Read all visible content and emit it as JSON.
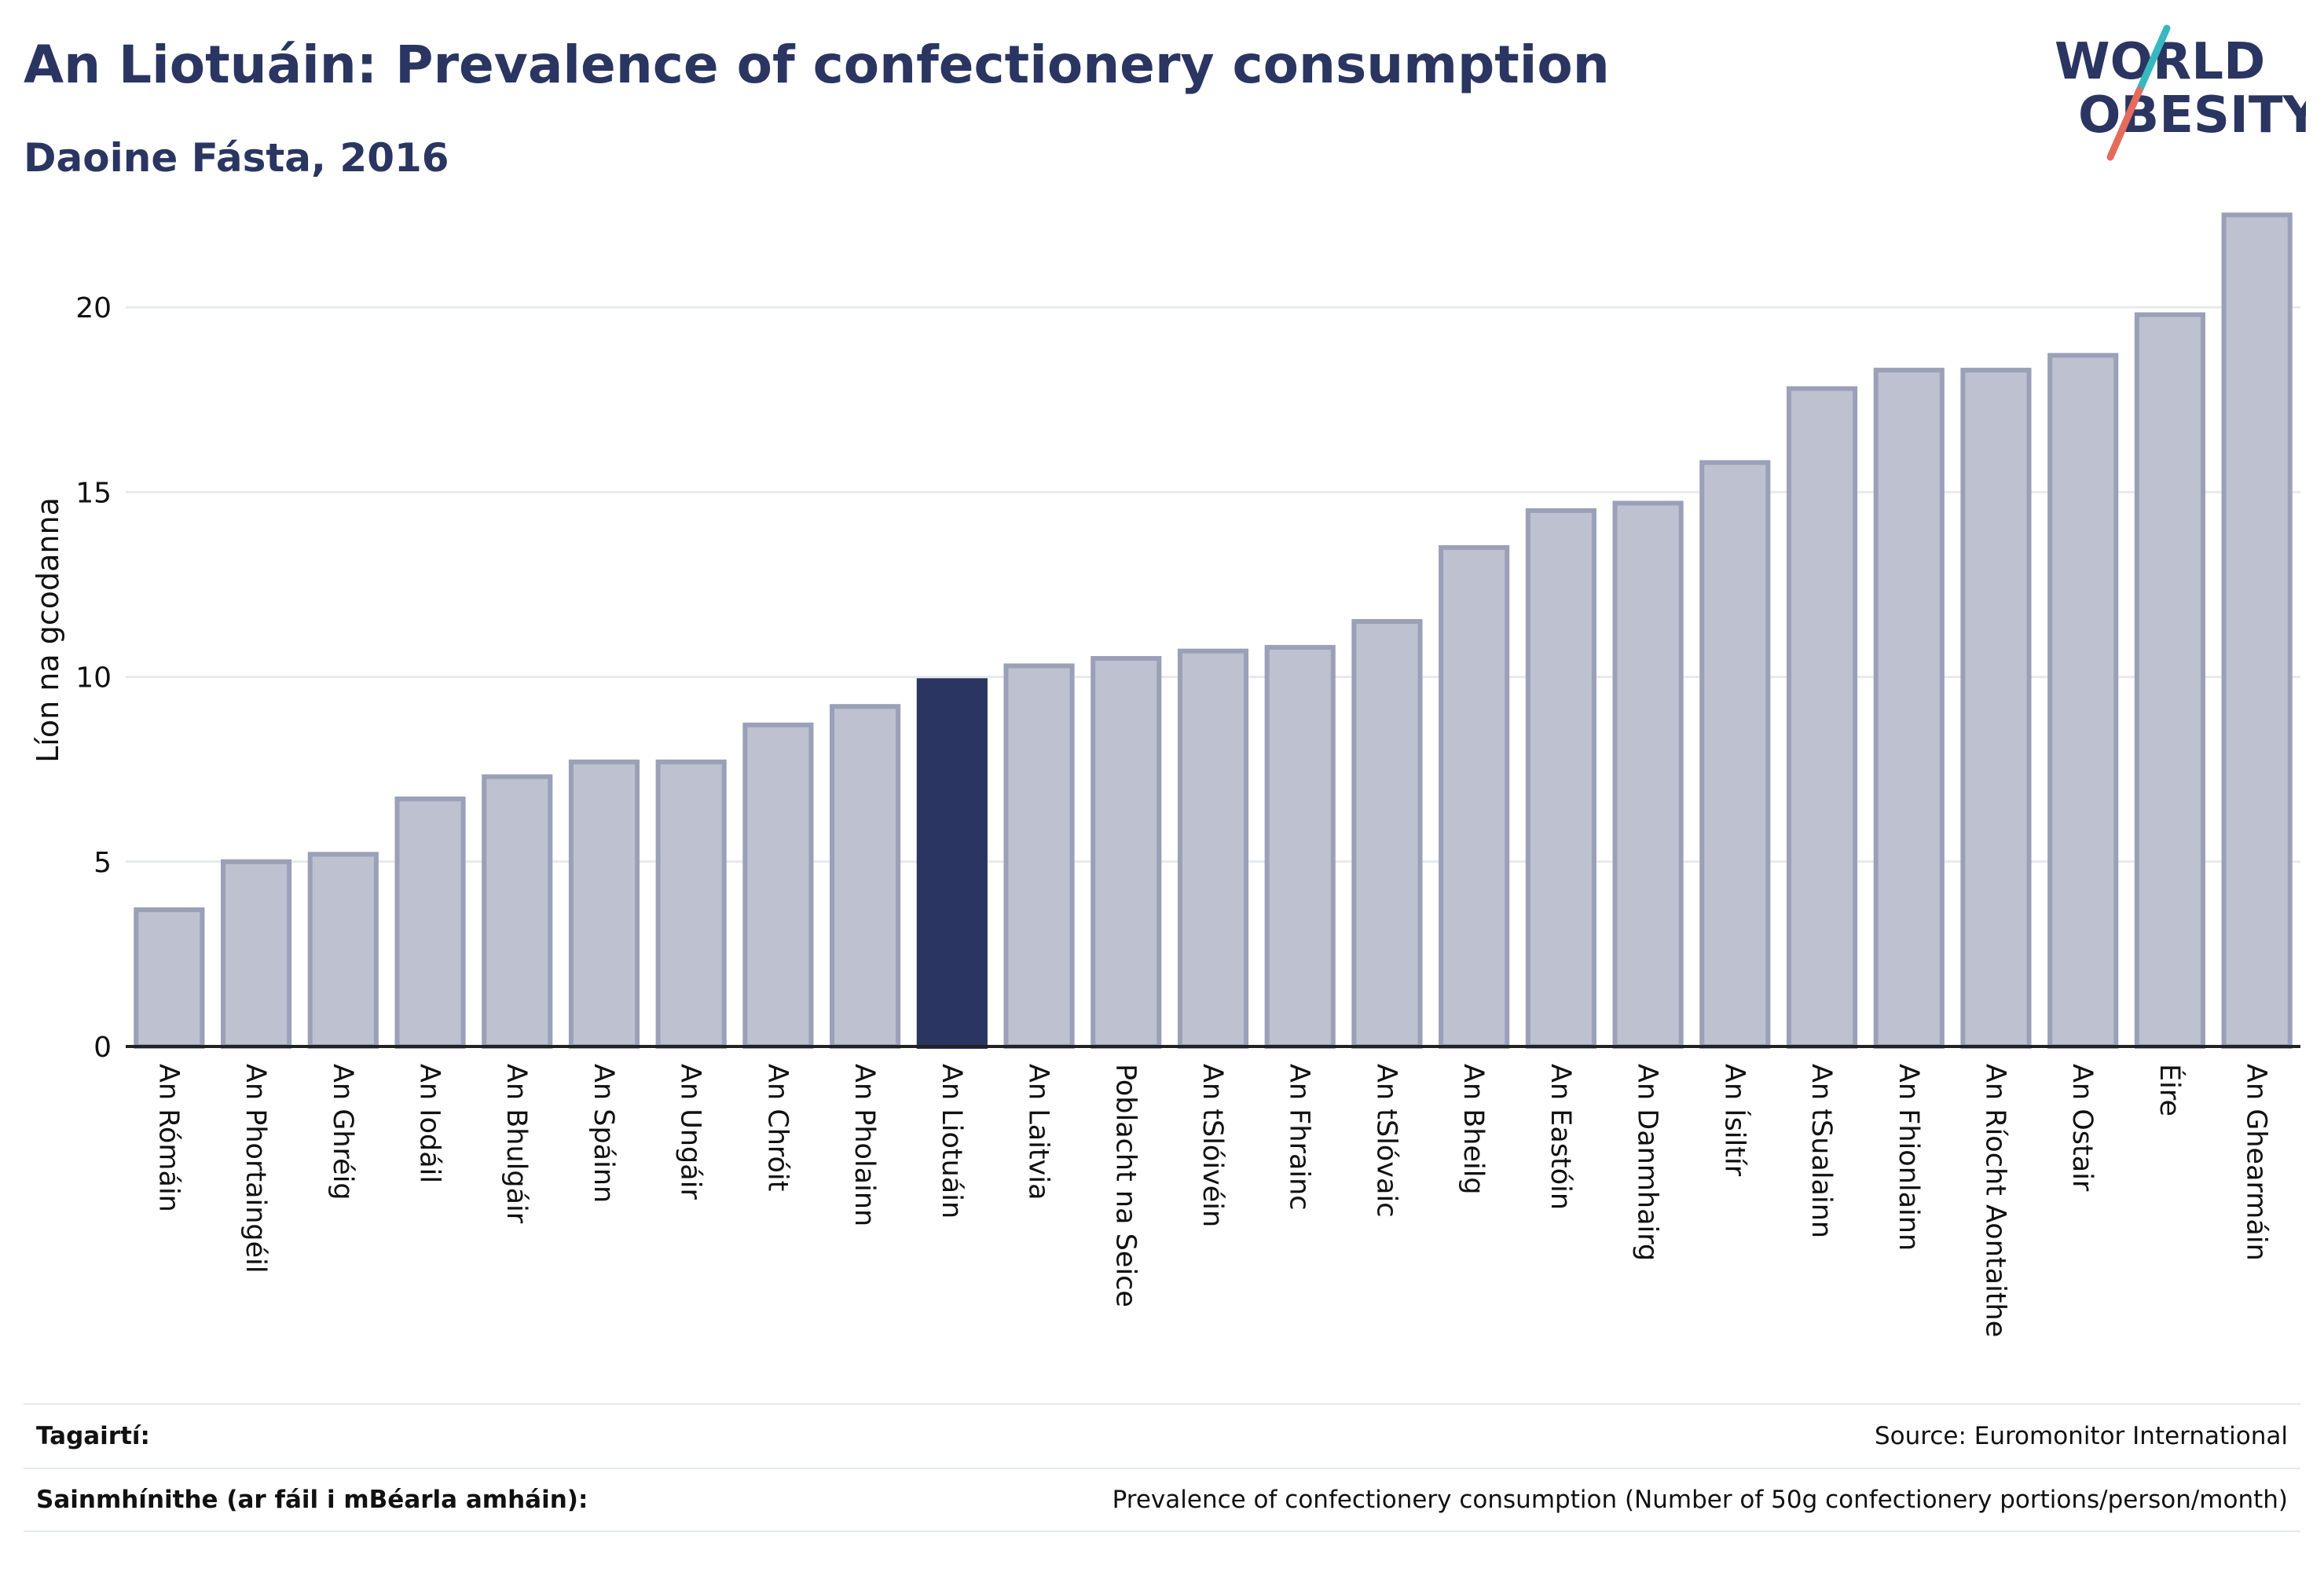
{
  "header": {
    "title": "An Liotuáin: Prevalence of confectionery consumption",
    "subtitle": "Daoine Fásta, 2016"
  },
  "logo": {
    "line1": "WORLD",
    "line2": "OBESITY",
    "colors": {
      "text": "#2a3561",
      "slash_top": "#36b8be",
      "slash_bottom": "#e56b5d"
    }
  },
  "chart_data": {
    "type": "bar",
    "ylabel": "Líon na gcodanna",
    "xlabel": "",
    "ylim": [
      0,
      23
    ],
    "yticks": [
      0,
      5,
      10,
      15,
      20
    ],
    "grid": true,
    "highlight": "An Liotuáin",
    "colors": {
      "bar": "#bec1cf",
      "bar_edge": "#9aa0b8",
      "highlight": "#2a3561",
      "grid": "#e8e9ef",
      "axis": "#222222"
    },
    "categories": [
      "An Rómáin",
      "An Phortaingéil",
      "An Ghréig",
      "An Iodáil",
      "An Bhulgáir",
      "An Spáinn",
      "An Ungáir",
      "An Chróit",
      "An Pholainn",
      "An Liotuáin",
      "An Laitvia",
      "Poblacht na Seice",
      "An tSlóivéin",
      "An Fhrainc",
      "An tSlóvaic",
      "An Bheilg",
      "An Eastóin",
      "An Danmhairg",
      "An Ísiltír",
      "An tSualainn",
      "An Fhionlainn",
      "An Ríocht Aontaithe",
      "An Ostair",
      "Éire",
      "An Ghearmáin"
    ],
    "values": [
      3.7,
      5.0,
      5.2,
      6.7,
      7.3,
      7.7,
      7.7,
      8.7,
      9.2,
      9.9,
      10.3,
      10.5,
      10.7,
      10.8,
      11.5,
      13.5,
      14.5,
      14.7,
      15.8,
      17.8,
      18.3,
      18.3,
      18.7,
      19.8,
      22.5
    ]
  },
  "footer": {
    "references_label": "Tagairtí:",
    "references_value": "Source: Euromonitor International",
    "definitions_label": "Sainmhínithe (ar fáil i mBéarla amháin):",
    "definitions_value": "Prevalence of confectionery consumption (Number of 50g confectionery portions/person/month)"
  }
}
